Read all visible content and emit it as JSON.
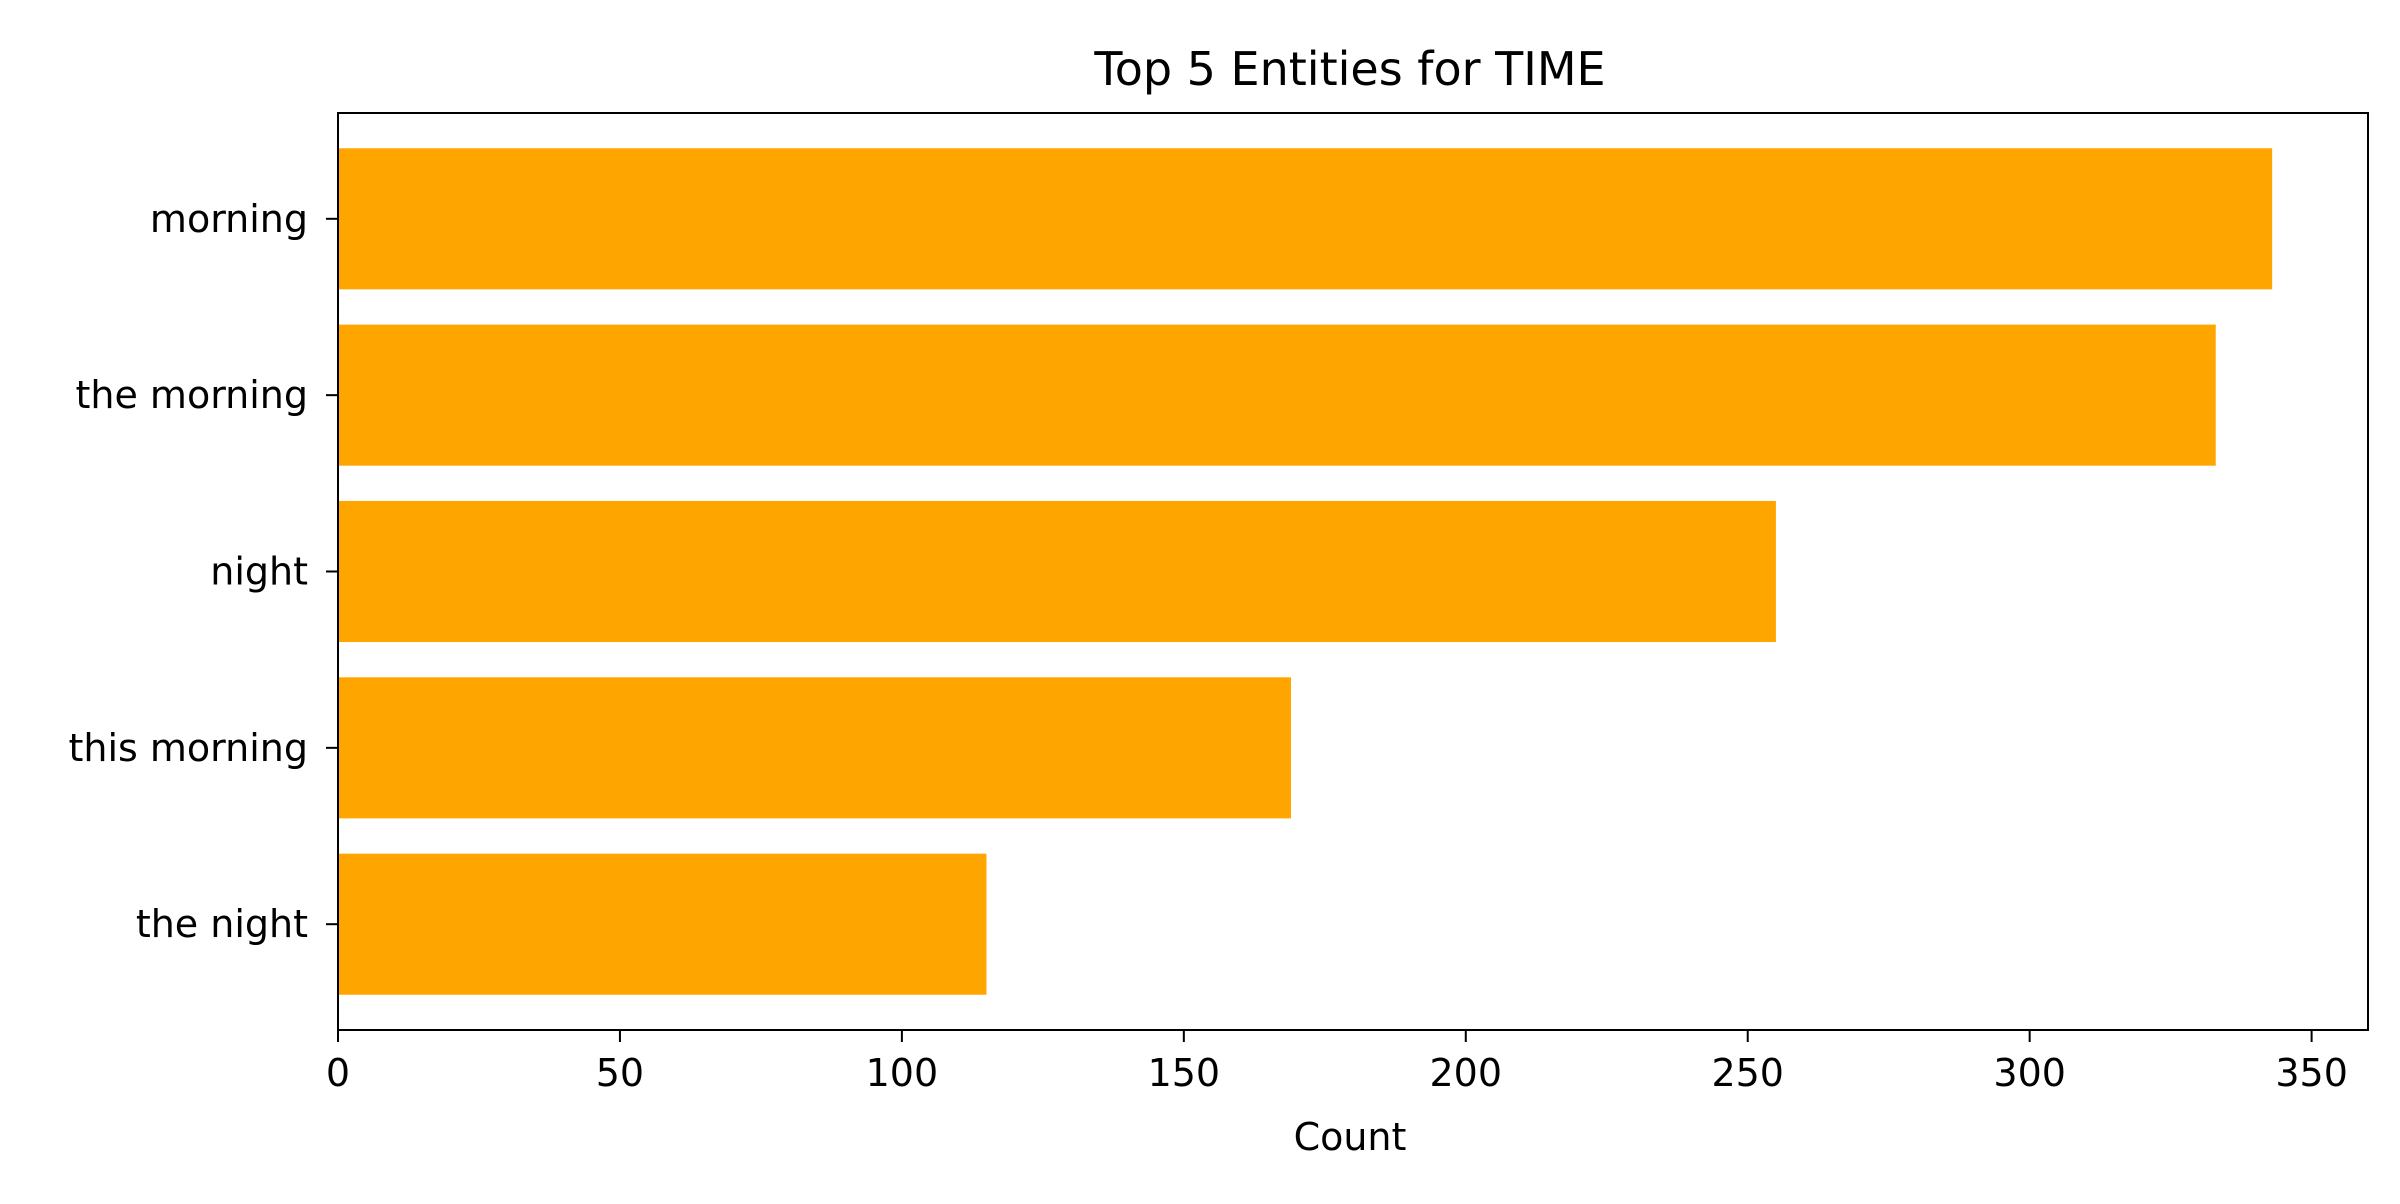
{
  "chart_data": {
    "type": "bar",
    "orientation": "horizontal",
    "title": "Top 5 Entities for TIME",
    "xlabel": "Count",
    "ylabel": "",
    "categories": [
      "morning",
      "the morning",
      "night",
      "this morning",
      "the night"
    ],
    "values": [
      343,
      333,
      255,
      169,
      115
    ],
    "xlim": [
      0,
      360
    ],
    "xticks": [
      0,
      50,
      100,
      150,
      200,
      250,
      300,
      350
    ],
    "bar_color": "#FFA500",
    "grid": false,
    "legend": false
  }
}
